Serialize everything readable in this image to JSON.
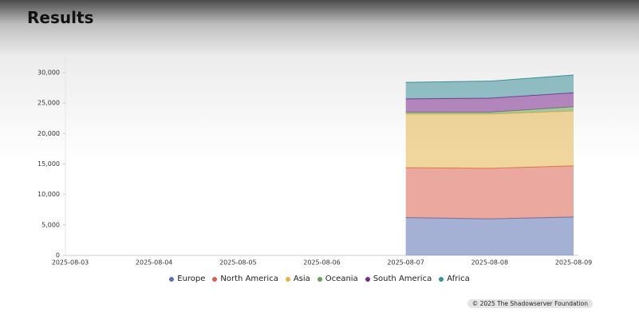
{
  "header": {
    "title": "Results"
  },
  "chart_data": {
    "type": "stacked-area",
    "categories": [
      "2025-08-03",
      "2025-08-04",
      "2025-08-05",
      "2025-08-06",
      "2025-08-07",
      "2025-08-08",
      "2025-08-09"
    ],
    "series": [
      {
        "name": "Europe",
        "color": "#5a6fb0",
        "values": [
          null,
          null,
          null,
          null,
          6200,
          6000,
          6300
        ]
      },
      {
        "name": "North America",
        "color": "#d9604f",
        "values": [
          null,
          null,
          null,
          null,
          8200,
          8300,
          8400
        ]
      },
      {
        "name": "Asia",
        "color": "#e3b44a",
        "values": [
          null,
          null,
          null,
          null,
          8800,
          8900,
          9000
        ]
      },
      {
        "name": "Oceania",
        "color": "#6a9e5a",
        "values": [
          null,
          null,
          null,
          null,
          300,
          300,
          700
        ]
      },
      {
        "name": "South America",
        "color": "#7a2a8c",
        "values": [
          null,
          null,
          null,
          null,
          2200,
          2300,
          2300
        ]
      },
      {
        "name": "Africa",
        "color": "#3d8f99",
        "values": [
          null,
          null,
          null,
          null,
          2700,
          2800,
          2900
        ]
      }
    ],
    "ylim": [
      0,
      30000
    ],
    "yticks": [
      0,
      {
        "value": 5000,
        "label": "5,000"
      },
      {
        "value": 10000,
        "label": "10,000"
      },
      {
        "value": 15000,
        "label": "15,000"
      },
      {
        "value": 20000,
        "label": "20,000"
      },
      {
        "value": 25000,
        "label": "25,000"
      },
      {
        "value": 30000,
        "label": "30,000"
      }
    ],
    "grid": false
  },
  "footer": {
    "copyright": "© 2025 The Shadowserver Foundation"
  }
}
